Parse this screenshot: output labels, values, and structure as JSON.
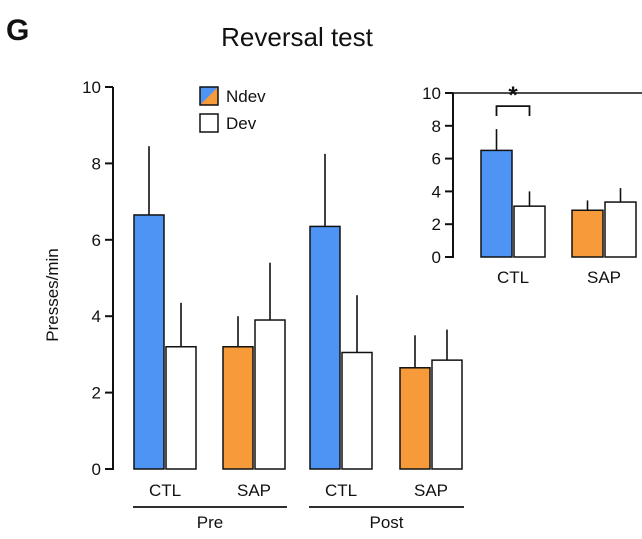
{
  "panel_label": "G",
  "colors": {
    "ndev_ctl": "#4d94f5",
    "ndev_sap": "#f79a3a",
    "dev": "#ffffff",
    "ink": "#111111"
  },
  "chart_data": [
    {
      "type": "bar",
      "title": "Reversal test",
      "ylabel": "Presses/min",
      "ylim": [
        0,
        10
      ],
      "yticks": [
        "0",
        "2",
        "4",
        "6",
        "8",
        "10"
      ],
      "legend": {
        "placement": "top-center",
        "entries": [
          "Ndev",
          "Dev"
        ]
      },
      "groups": [
        "Pre",
        "Post"
      ],
      "categories": [
        "CTL",
        "SAP",
        "CTL",
        "SAP"
      ],
      "series": [
        {
          "name": "Ndev",
          "values": [
            6.65,
            3.2,
            6.35,
            2.65
          ],
          "errors": [
            1.8,
            0.8,
            1.9,
            0.85
          ]
        },
        {
          "name": "Dev",
          "values": [
            3.2,
            3.9,
            3.05,
            2.85
          ],
          "errors": [
            1.15,
            1.5,
            1.5,
            0.8
          ]
        }
      ]
    },
    {
      "type": "bar",
      "inset": true,
      "ylim": [
        0,
        10
      ],
      "yticks": [
        "0",
        "2",
        "4",
        "6",
        "8",
        "10"
      ],
      "categories": [
        "CTL",
        "SAP"
      ],
      "series": [
        {
          "name": "Ndev",
          "values": [
            6.5,
            2.85
          ],
          "errors": [
            1.3,
            0.6
          ]
        },
        {
          "name": "Dev",
          "values": [
            3.1,
            3.35
          ],
          "errors": [
            0.9,
            0.85
          ]
        }
      ],
      "annotation": "*"
    }
  ]
}
